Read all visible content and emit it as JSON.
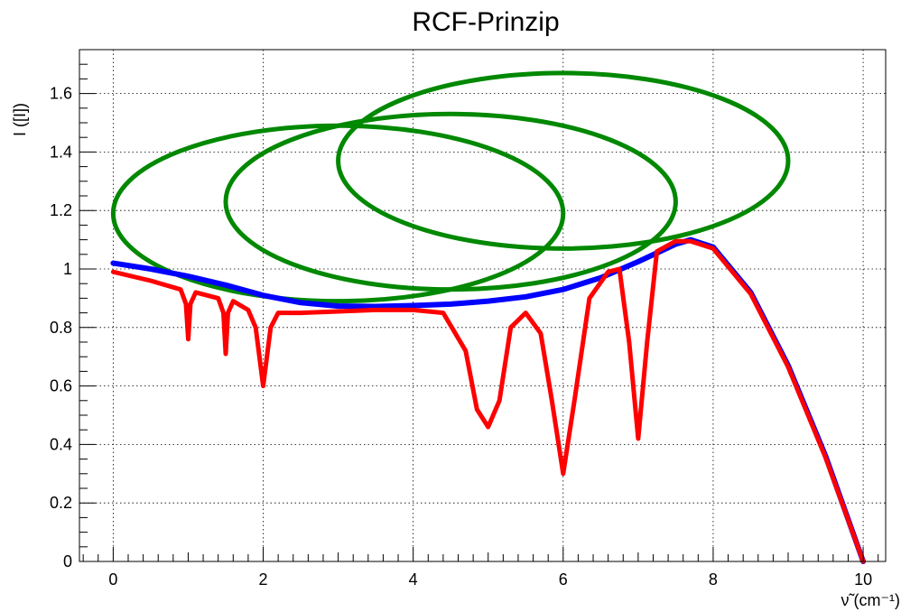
{
  "chart_data": {
    "type": "line",
    "title": "RCF-Prinzip",
    "xlabel": "ν̃ (cm⁻¹)",
    "ylabel": "I ([I])",
    "xlim": [
      -0.45,
      10.3
    ],
    "ylim": [
      0,
      1.75
    ],
    "grid": true,
    "x_ticks": [
      0,
      2,
      4,
      6,
      8,
      10
    ],
    "y_ticks": [
      0,
      0.2,
      0.4,
      0.6,
      0.8,
      1,
      1.2,
      1.4,
      1.6
    ],
    "x_tick_labels": [
      "0",
      "2",
      "4",
      "6",
      "8",
      "10"
    ],
    "y_tick_labels": [
      "0",
      "0.2",
      "0.4",
      "0.6",
      "0.8",
      "1",
      "1.2",
      "1.4",
      "1.6"
    ],
    "series": [
      {
        "color": "#0000ff",
        "x": [
          0,
          0.5,
          1,
          1.5,
          2,
          2.5,
          3,
          3.5,
          4,
          4.5,
          5,
          5.5,
          6,
          6.5,
          7,
          7.5,
          7.7,
          8,
          8.5,
          9,
          9.5,
          10
        ],
        "y": [
          1.02,
          1.0,
          0.975,
          0.945,
          0.91,
          0.885,
          0.873,
          0.872,
          0.875,
          0.88,
          0.89,
          0.905,
          0.93,
          0.97,
          1.025,
          1.085,
          1.1,
          1.075,
          0.92,
          0.67,
          0.36,
          0.0
        ]
      },
      {
        "color": "#ff0000",
        "x": [
          0,
          0.5,
          0.9,
          0.97,
          1.0,
          1.03,
          1.1,
          1.4,
          1.47,
          1.5,
          1.53,
          1.6,
          1.8,
          1.9,
          2.0,
          2.1,
          2.2,
          2.5,
          3,
          3.5,
          4,
          4.4,
          4.7,
          4.85,
          5.0,
          5.15,
          5.3,
          5.5,
          5.7,
          5.85,
          6.0,
          6.15,
          6.35,
          6.6,
          6.75,
          6.88,
          7.0,
          7.12,
          7.25,
          7.5,
          7.7,
          8.0,
          8.5,
          9.0,
          9.5,
          10.0
        ],
        "y": [
          0.99,
          0.96,
          0.93,
          0.88,
          0.76,
          0.88,
          0.92,
          0.9,
          0.85,
          0.71,
          0.85,
          0.89,
          0.86,
          0.8,
          0.6,
          0.8,
          0.85,
          0.85,
          0.855,
          0.86,
          0.86,
          0.85,
          0.72,
          0.52,
          0.46,
          0.55,
          0.8,
          0.85,
          0.78,
          0.55,
          0.3,
          0.55,
          0.9,
          0.99,
          1.0,
          0.75,
          0.42,
          0.75,
          1.06,
          1.095,
          1.095,
          1.07,
          0.915,
          0.665,
          0.355,
          0.0
        ]
      }
    ],
    "ellipses": [
      {
        "color": "#008800",
        "cx": 3.0,
        "cy": 1.19,
        "rx": 3.0,
        "ry": 0.3
      },
      {
        "color": "#008800",
        "cx": 4.5,
        "cy": 1.23,
        "rx": 3.0,
        "ry": 0.3
      },
      {
        "color": "#008800",
        "cx": 6.0,
        "cy": 1.37,
        "rx": 3.0,
        "ry": 0.3
      }
    ]
  }
}
